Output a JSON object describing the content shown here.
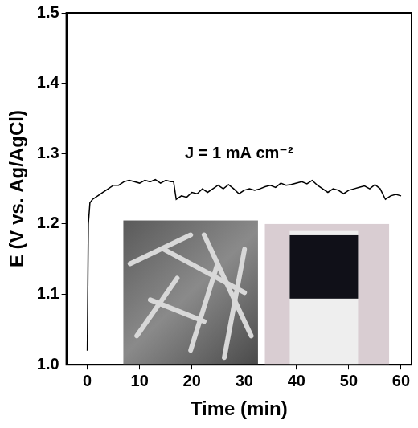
{
  "chart_data": {
    "type": "line",
    "x_label": "Time (min)",
    "y_label": "E (V vs. Ag/AgCl)",
    "annotations": [
      {
        "text": "J = 1 mA cm⁻²"
      }
    ],
    "x": [
      0,
      0.2,
      0.5,
      1,
      2,
      3,
      4,
      5,
      6,
      7,
      8,
      9,
      10,
      11,
      12,
      13,
      14,
      15,
      16,
      16.5,
      17,
      18,
      19,
      20,
      21,
      22,
      23,
      24,
      25,
      26,
      27,
      28,
      29,
      30,
      31,
      32,
      33,
      34,
      35,
      36,
      37,
      38,
      39,
      40,
      41,
      42,
      43,
      44,
      45,
      46,
      47,
      48,
      49,
      50,
      51,
      52,
      53,
      54,
      55,
      56,
      57,
      58,
      59,
      60
    ],
    "values": [
      1.02,
      1.2,
      1.23,
      1.235,
      1.24,
      1.245,
      1.25,
      1.255,
      1.255,
      1.26,
      1.262,
      1.26,
      1.258,
      1.262,
      1.26,
      1.263,
      1.258,
      1.262,
      1.26,
      1.26,
      1.235,
      1.24,
      1.238,
      1.245,
      1.243,
      1.25,
      1.245,
      1.25,
      1.255,
      1.25,
      1.256,
      1.25,
      1.243,
      1.248,
      1.25,
      1.248,
      1.25,
      1.253,
      1.255,
      1.252,
      1.258,
      1.255,
      1.256,
      1.258,
      1.26,
      1.257,
      1.262,
      1.255,
      1.25,
      1.245,
      1.25,
      1.248,
      1.243,
      1.248,
      1.25,
      1.252,
      1.254,
      1.25,
      1.256,
      1.25,
      1.235,
      1.24,
      1.242,
      1.24
    ],
    "color": "#000000",
    "xlim": [
      -4,
      62
    ],
    "xticks": [
      0,
      10,
      20,
      30,
      40,
      50,
      60
    ],
    "ylim": [
      1.0,
      1.5
    ],
    "yticks": [
      {
        "value": 1.0,
        "label": "1.0"
      },
      1.1,
      1.2,
      1.3,
      1.4,
      1.5
    ],
    "grid": false
  }
}
